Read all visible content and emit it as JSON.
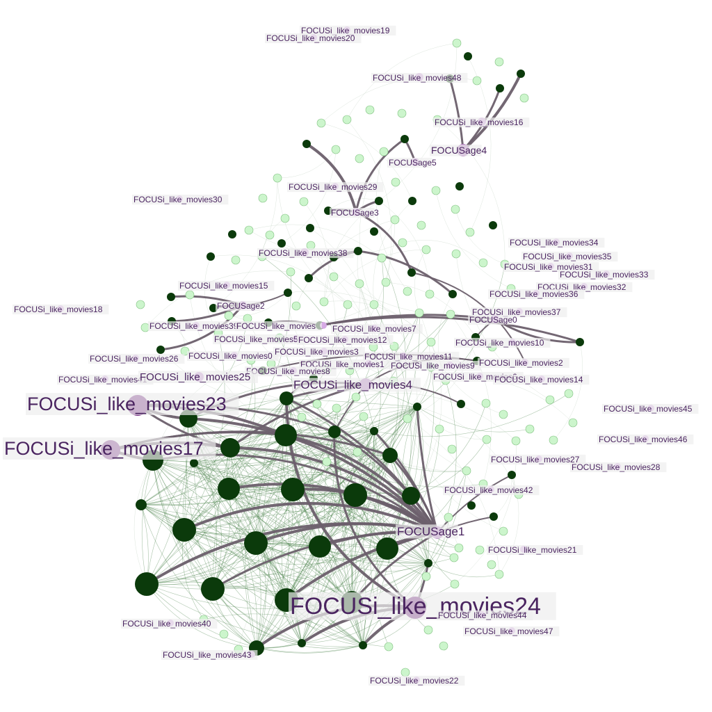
{
  "colors": {
    "dark_node": "#0b3a0b",
    "light_node": "#ccf5cc",
    "focus_node": "#cc88dd",
    "label": "#4a2460",
    "thick_edge": "#6b5f6b",
    "thin_edge": "#3f7a3f"
  },
  "focus_labels": [
    {
      "id": "m19",
      "text": "FOCUSi_like_movies19"
    },
    {
      "id": "m20",
      "text": "FOCUSi_like_movies20"
    },
    {
      "id": "m48",
      "text": "FOCUSi_like_movies48"
    },
    {
      "id": "m16",
      "text": "FOCUSi_like_movies16"
    },
    {
      "id": "a4",
      "text": "FOCUSage4"
    },
    {
      "id": "a5",
      "text": "FOCUSage5"
    },
    {
      "id": "m29",
      "text": "FOCUSi_like_movies29"
    },
    {
      "id": "m30",
      "text": "FOCUSi_like_movies30"
    },
    {
      "id": "a3",
      "text": "FOCUSage3"
    },
    {
      "id": "m38",
      "text": "FOCUSi_like_movies38"
    },
    {
      "id": "m34",
      "text": "FOCUSi_like_movies34"
    },
    {
      "id": "m35",
      "text": "FOCUSi_like_movies35"
    },
    {
      "id": "m31",
      "text": "FOCUSi_like_movies31"
    },
    {
      "id": "m33",
      "text": "FOCUSi_like_movies33"
    },
    {
      "id": "m32",
      "text": "FOCUSi_like_movies32"
    },
    {
      "id": "m15",
      "text": "FOCUSi_like_movies15"
    },
    {
      "id": "m36",
      "text": "FOCUSi_like_movies36"
    },
    {
      "id": "m18",
      "text": "FOCUSi_like_movies18"
    },
    {
      "id": "a2",
      "text": "FOCUSage2"
    },
    {
      "id": "m37",
      "text": "FOCUSi_like_movies37"
    },
    {
      "id": "a0",
      "text": "FOCUSage0"
    },
    {
      "id": "m39",
      "text": "FOCUSi_like_movies39"
    },
    {
      "id": "m1x",
      "text": "FOCUSi_like_movies"
    },
    {
      "id": "m7",
      "text": "FOCUSi_like_movies7"
    },
    {
      "id": "m5",
      "text": "FOCUSi_like_movies5"
    },
    {
      "id": "m12",
      "text": "FOCUSi_like_movies12"
    },
    {
      "id": "m10",
      "text": "FOCUSi_like_movies10"
    },
    {
      "id": "m26",
      "text": "FOCUSi_like_movies26"
    },
    {
      "id": "m0",
      "text": "FOCUSi_like_movies0"
    },
    {
      "id": "m3",
      "text": "FOCUSi_like_movies3"
    },
    {
      "id": "m11",
      "text": "FOCUSi_like_movies11"
    },
    {
      "id": "m1",
      "text": "FOCUSi_like_movies1"
    },
    {
      "id": "m9",
      "text": "FOCUSi_like_movies9"
    },
    {
      "id": "m2",
      "text": "FOCUSi_like_movies2"
    },
    {
      "id": "m8",
      "text": "FOCUSi_like_movies8"
    },
    {
      "id": "m41",
      "text": "FOCUSi_like_movies41"
    },
    {
      "id": "m25",
      "text": "FOCUSi_like_movies25"
    },
    {
      "id": "m6",
      "text": "FOCUSi_like_movies6"
    },
    {
      "id": "m14",
      "text": "FOCUSi_like_movies14"
    },
    {
      "id": "m4",
      "text": "FOCUSi_like_movies4"
    },
    {
      "id": "m23",
      "text": "FOCUSi_like_movies23"
    },
    {
      "id": "m45",
      "text": "FOCUSi_like_movies45"
    },
    {
      "id": "m46",
      "text": "FOCUSi_like_movies46"
    },
    {
      "id": "m17",
      "text": "FOCUSi_like_movies17"
    },
    {
      "id": "m27",
      "text": "FOCUSi_like_movies27"
    },
    {
      "id": "m28",
      "text": "FOCUSi_like_movies28"
    },
    {
      "id": "m42",
      "text": "FOCUSi_like_movies42"
    },
    {
      "id": "a1",
      "text": "FOCUSage1"
    },
    {
      "id": "m21",
      "text": "FOCUSi_like_movies21"
    },
    {
      "id": "m24",
      "text": "FOCUSi_like_movies24"
    },
    {
      "id": "m44",
      "text": "FOCUSi_like_movies44"
    },
    {
      "id": "m40",
      "text": "FOCUSi_like_movies40"
    },
    {
      "id": "m47",
      "text": "FOCUSi_like_movies47"
    },
    {
      "id": "m43",
      "text": "FOCUSi_like_movies43"
    },
    {
      "id": "m22",
      "text": "FOCUSi_like_movies22"
    }
  ]
}
